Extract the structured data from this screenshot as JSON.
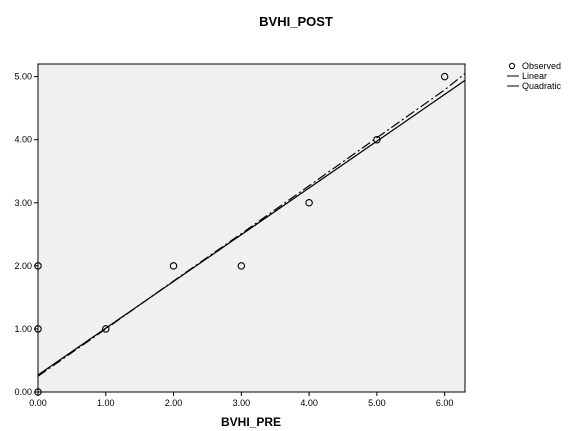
{
  "chart_data": {
    "type": "scatter",
    "title": "BVHI_POST",
    "xlabel": "BVHI_PRE",
    "ylabel": "",
    "xlim": [
      0,
      6.3
    ],
    "ylim": [
      0,
      5.2
    ],
    "x_ticks": [
      "0.00",
      "1.00",
      "2.00",
      "3.00",
      "4.00",
      "5.00",
      "6.00"
    ],
    "y_ticks": [
      "0.00",
      "1.00",
      "2.00",
      "3.00",
      "4.00",
      "5.00"
    ],
    "grid": false,
    "legend_position": "top-right",
    "legend": [
      "Observed",
      "Linear",
      "Quadratic"
    ],
    "series": [
      {
        "name": "Observed",
        "kind": "points",
        "points": [
          {
            "x": 0,
            "y": 0
          },
          {
            "x": 0,
            "y": 1
          },
          {
            "x": 0,
            "y": 2
          },
          {
            "x": 1,
            "y": 1
          },
          {
            "x": 2,
            "y": 2
          },
          {
            "x": 3,
            "y": 2
          },
          {
            "x": 4,
            "y": 3
          },
          {
            "x": 5,
            "y": 4
          },
          {
            "x": 6,
            "y": 5
          }
        ]
      },
      {
        "name": "Linear",
        "kind": "line",
        "points": [
          {
            "x": 0,
            "y": 0.27
          },
          {
            "x": 6.3,
            "y": 4.94
          }
        ]
      },
      {
        "name": "Quadratic",
        "kind": "dashdot",
        "points": [
          {
            "x": 0,
            "y": 0.25
          },
          {
            "x": 1,
            "y": 1.0
          },
          {
            "x": 2,
            "y": 1.76
          },
          {
            "x": 3,
            "y": 2.51
          },
          {
            "x": 4,
            "y": 3.27
          },
          {
            "x": 5,
            "y": 4.03
          },
          {
            "x": 6,
            "y": 4.79
          },
          {
            "x": 6.3,
            "y": 5.05
          }
        ]
      }
    ],
    "colors": {
      "plot_background": "#f0f0f0",
      "line": "#000000",
      "marker": "#000000"
    }
  }
}
